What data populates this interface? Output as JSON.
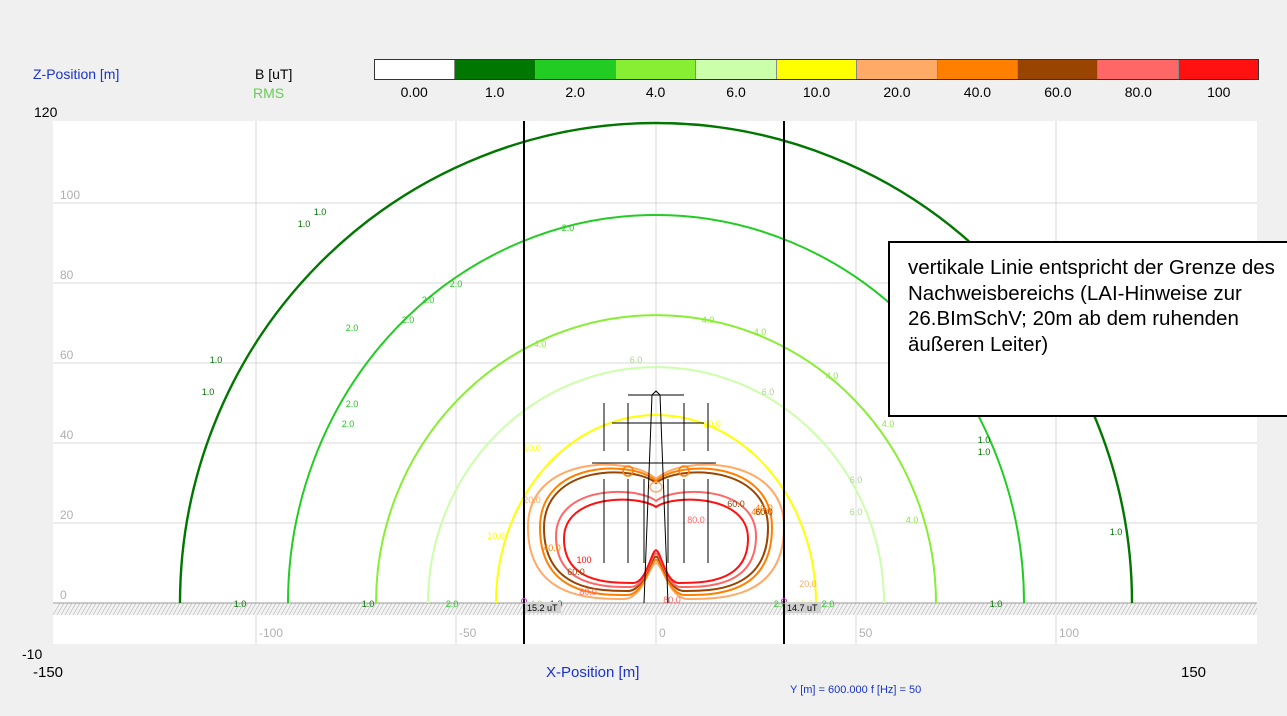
{
  "chart_data": {
    "type": "contour",
    "unit_label": "B [uT]",
    "quantity_label": "RMS",
    "ylabel": "Z-Position [m]",
    "xlabel": "X-Position [m]",
    "xlim": [
      -150,
      150
    ],
    "ylim": [
      -10,
      120
    ],
    "axis_corner_labels": {
      "z_max": "120",
      "z_min": "-10",
      "x_min": "-150",
      "x_max": "150"
    },
    "x_grid_ticks": [
      "-100",
      "-50",
      "0",
      "50",
      "100"
    ],
    "y_grid_ticks": [
      "0",
      "20",
      "40",
      "60",
      "80",
      "100"
    ],
    "grid": true,
    "colorscale": [
      {
        "label": "0.00",
        "color": "#ffffff"
      },
      {
        "label": "1.0",
        "color": "#007700"
      },
      {
        "label": "2.0",
        "color": "#22cc22"
      },
      {
        "label": "4.0",
        "color": "#88ee33"
      },
      {
        "label": "6.0",
        "color": "#ccffaa"
      },
      {
        "label": "10.0",
        "color": "#ffff00"
      },
      {
        "label": "20.0",
        "color": "#ffaa66"
      },
      {
        "label": "40.0",
        "color": "#ff7f00"
      },
      {
        "label": "60.0",
        "color": "#994400"
      },
      {
        "label": "80.0",
        "color": "#ff6666"
      },
      {
        "label": "100",
        "color": "#ff1111"
      }
    ],
    "contours": [
      {
        "level": "1.0",
        "color": "#007700",
        "radius_x": 119,
        "top_z": 120,
        "label_positions": [
          [
            -84,
            97
          ],
          [
            -88,
            94
          ],
          [
            -110,
            60
          ],
          [
            -112,
            52
          ],
          [
            82,
            40
          ],
          [
            82,
            37
          ],
          [
            115,
            17
          ],
          [
            -104,
            -1
          ],
          [
            -72,
            -1
          ],
          [
            -25,
            -1
          ],
          [
            85,
            -1
          ]
        ]
      },
      {
        "level": "2.0",
        "color": "#22cc22",
        "radius_x": 92,
        "top_z": 97,
        "label_positions": [
          [
            -22,
            93
          ],
          [
            -50,
            79
          ],
          [
            -57,
            75
          ],
          [
            -62,
            70
          ],
          [
            -76,
            68
          ],
          [
            -76,
            49
          ],
          [
            -77,
            44
          ],
          [
            -51,
            -1
          ],
          [
            31,
            -1
          ],
          [
            43,
            -1
          ]
        ]
      },
      {
        "level": "4.0",
        "color": "#88ee33",
        "radius_x": 70,
        "top_z": 72,
        "label_positions": [
          [
            -29,
            64
          ],
          [
            13,
            70
          ],
          [
            26,
            67
          ],
          [
            44,
            56
          ],
          [
            58,
            44
          ],
          [
            64,
            20
          ],
          [
            -30,
            -1
          ]
        ]
      },
      {
        "level": "6.0",
        "color": "#ccffaa",
        "radius_x": 57,
        "top_z": 59,
        "label_positions": [
          [
            -5,
            60
          ],
          [
            28,
            52
          ],
          [
            50,
            30
          ],
          [
            50,
            22
          ]
        ]
      },
      {
        "level": "10.0",
        "color": "#ffff00",
        "radius_x": 40,
        "top_z": 47,
        "label_positions": [
          [
            14,
            44
          ],
          [
            -31,
            38
          ],
          [
            -40,
            16
          ],
          [
            37,
            -1
          ]
        ]
      },
      {
        "level": "20.0",
        "color": "#ffaa66",
        "radius_x": 32,
        "top_z": 37,
        "label_positions": [
          [
            -31,
            25
          ],
          [
            38,
            4
          ]
        ]
      },
      {
        "level": "40.0",
        "color": "#ff7f00",
        "radius_x": 29,
        "top_z": 36,
        "label_positions": [
          [
            26,
            22
          ],
          [
            -26,
            13
          ],
          [
            27,
            23
          ]
        ]
      },
      {
        "level": "60.0",
        "color": "#994400",
        "radius_x": 28,
        "top_z": 35,
        "label_positions": [
          [
            20,
            24
          ],
          [
            -20,
            7
          ],
          [
            27,
            22
          ]
        ]
      },
      {
        "level": "80.0",
        "color": "#ff6666",
        "radius_x": 25,
        "top_z": 30,
        "label_positions": [
          [
            10,
            20
          ],
          [
            -17,
            2
          ],
          [
            4,
            0
          ]
        ]
      },
      {
        "level": "100",
        "color": "#ff1111",
        "radius_x": 23,
        "top_z": 28,
        "label_positions": [
          [
            -18,
            10
          ]
        ]
      }
    ],
    "vertical_lines_x": [
      -33,
      32
    ],
    "ground_markers": [
      {
        "x": -33,
        "label": "15.2 uT"
      },
      {
        "x": 32,
        "label": "14.7 uT"
      }
    ],
    "annotation": "vertikale Linie entspricht der Grenze des Nachweisbereichs (LAI-Hinweise zur 26.BImSchV; 20m ab dem ruhenden äußeren Leiter)"
  },
  "footer": "Y [m] = 600.000      f [Hz] = 50"
}
